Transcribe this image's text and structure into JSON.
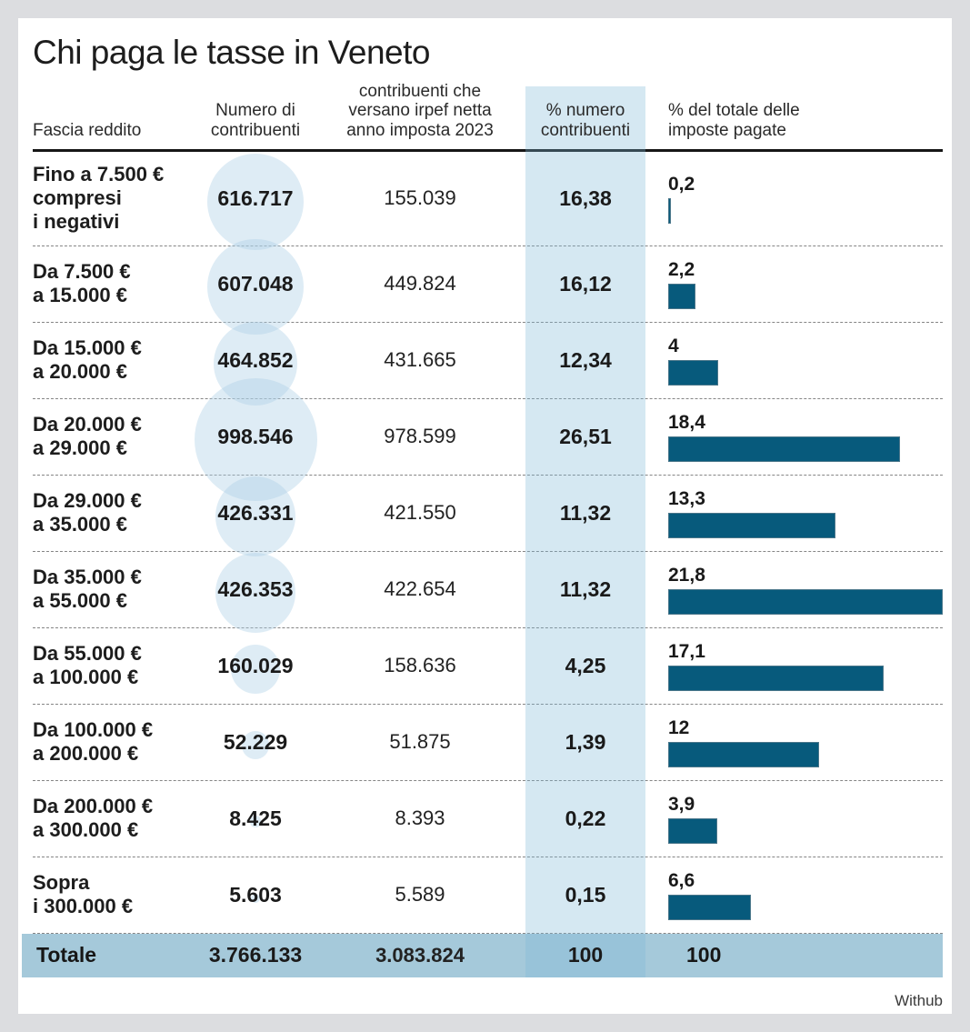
{
  "title": "Chi paga le tasse in Veneto",
  "source": "Withub",
  "colors": {
    "bar": "#075a7c",
    "bubble": "rgba(173,208,231,0.4)",
    "column_highlight": "rgba(125,185,214,0.32)",
    "total_row": "#a5c9da"
  },
  "chart_data": {
    "type": "table",
    "title": "Chi paga le tasse in Veneto",
    "columns": [
      "Fascia reddito",
      "Numero di contribuenti",
      "contribuenti che versano irpef netta anno imposta 2023",
      "% numero contribuenti",
      "% del totale delle imposte pagate"
    ],
    "bar_axis_max": 21.8,
    "rows": [
      {
        "bracket": [
          "Fino a 7.500 €",
          "compresi",
          "i negativi"
        ],
        "contribuenti": "616.717",
        "contribuenti_num": 616717,
        "versano": "155.039",
        "pct_contribuenti": "16,38",
        "pct_imposte": "0,2",
        "pct_imposte_num": 0.2
      },
      {
        "bracket": [
          "Da 7.500 €",
          "a 15.000 €"
        ],
        "contribuenti": "607.048",
        "contribuenti_num": 607048,
        "versano": "449.824",
        "pct_contribuenti": "16,12",
        "pct_imposte": "2,2",
        "pct_imposte_num": 2.2
      },
      {
        "bracket": [
          "Da 15.000 €",
          "a 20.000 €"
        ],
        "contribuenti": "464.852",
        "contribuenti_num": 464852,
        "versano": "431.665",
        "pct_contribuenti": "12,34",
        "pct_imposte": "4",
        "pct_imposte_num": 4
      },
      {
        "bracket": [
          "Da 20.000 €",
          "a 29.000 €"
        ],
        "contribuenti": "998.546",
        "contribuenti_num": 998546,
        "versano": "978.599",
        "pct_contribuenti": "26,51",
        "pct_imposte": "18,4",
        "pct_imposte_num": 18.4
      },
      {
        "bracket": [
          "Da 29.000 €",
          "a 35.000 €"
        ],
        "contribuenti": "426.331",
        "contribuenti_num": 426331,
        "versano": "421.550",
        "pct_contribuenti": "11,32",
        "pct_imposte": "13,3",
        "pct_imposte_num": 13.3
      },
      {
        "bracket": [
          "Da 35.000 €",
          "a 55.000 €"
        ],
        "contribuenti": "426.353",
        "contribuenti_num": 426353,
        "versano": "422.654",
        "pct_contribuenti": "11,32",
        "pct_imposte": "21,8",
        "pct_imposte_num": 21.8
      },
      {
        "bracket": [
          "Da 55.000 €",
          "a 100.000 €"
        ],
        "contribuenti": "160.029",
        "contribuenti_num": 160029,
        "versano": "158.636",
        "pct_contribuenti": "4,25",
        "pct_imposte": "17,1",
        "pct_imposte_num": 17.1
      },
      {
        "bracket": [
          "Da 100.000 €",
          "a 200.000 €"
        ],
        "contribuenti": "52.229",
        "contribuenti_num": 52229,
        "versano": "51.875",
        "pct_contribuenti": "1,39",
        "pct_imposte": "12",
        "pct_imposte_num": 12
      },
      {
        "bracket": [
          "Da 200.000 €",
          "a 300.000 €"
        ],
        "contribuenti": "8.425",
        "contribuenti_num": 8425,
        "versano": "8.393",
        "pct_contribuenti": "0,22",
        "pct_imposte": "3,9",
        "pct_imposte_num": 3.9
      },
      {
        "bracket": [
          "Sopra",
          "i 300.000 €"
        ],
        "contribuenti": "5.603",
        "contribuenti_num": 5603,
        "versano": "5.589",
        "pct_contribuenti": "0,15",
        "pct_imposte": "6,6",
        "pct_imposte_num": 6.6
      }
    ],
    "total": {
      "label": "Totale",
      "contribuenti": "3.766.133",
      "versano": "3.083.824",
      "pct_contribuenti": "100",
      "pct_imposte": "100"
    }
  }
}
